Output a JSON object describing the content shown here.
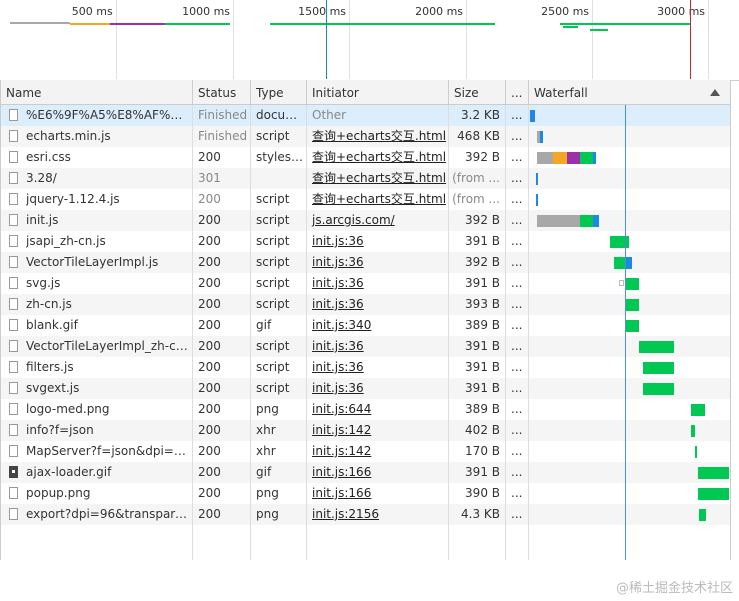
{
  "overview": {
    "ticks": [
      "500 ms",
      "1000 ms",
      "1500 ms",
      "2000 ms",
      "2500 ms",
      "3000 ms"
    ]
  },
  "columns": {
    "name": "Name",
    "status": "Status",
    "type": "Type",
    "initiator": "Initiator",
    "size": "Size",
    "time": "...",
    "waterfall": "Waterfall"
  },
  "rows": [
    {
      "name": "%E6%9F%A5%E8%AF%A2+e...",
      "status": "Finished",
      "type": "docum...",
      "initiator": "Other",
      "size": "3.2 KB",
      "time": "...",
      "icon": "file"
    },
    {
      "name": "echarts.min.js",
      "status": "Finished",
      "type": "script",
      "initiator": "查询+echarts交互.html",
      "size": "468 KB",
      "time": "...",
      "icon": "file"
    },
    {
      "name": "esri.css",
      "status": "200",
      "type": "stylesh...",
      "initiator": "查询+echarts交互.html",
      "size": "392 B",
      "time": "...",
      "icon": "file"
    },
    {
      "name": "3.28/",
      "status": "301",
      "type": "",
      "initiator": "查询+echarts交互.html",
      "size": "(from ...",
      "time": "...",
      "icon": "file"
    },
    {
      "name": "jquery-1.12.4.js",
      "status": "200",
      "type": "script",
      "initiator": "查询+echarts交互.html",
      "size": "(from ...",
      "time": "...",
      "icon": "file"
    },
    {
      "name": "init.js",
      "status": "200",
      "type": "script",
      "initiator": "js.arcgis.com/",
      "size": "392 B",
      "time": "...",
      "icon": "file"
    },
    {
      "name": "jsapi_zh-cn.js",
      "status": "200",
      "type": "script",
      "initiator": "init.js:36",
      "size": "391 B",
      "time": "...",
      "icon": "file"
    },
    {
      "name": "VectorTileLayerImpl.js",
      "status": "200",
      "type": "script",
      "initiator": "init.js:36",
      "size": "392 B",
      "time": "...",
      "icon": "file"
    },
    {
      "name": "svg.js",
      "status": "200",
      "type": "script",
      "initiator": "init.js:36",
      "size": "391 B",
      "time": "...",
      "icon": "file"
    },
    {
      "name": "zh-cn.js",
      "status": "200",
      "type": "script",
      "initiator": "init.js:36",
      "size": "393 B",
      "time": "...",
      "icon": "file"
    },
    {
      "name": "blank.gif",
      "status": "200",
      "type": "gif",
      "initiator": "init.js:340",
      "size": "389 B",
      "time": "...",
      "icon": "file"
    },
    {
      "name": "VectorTileLayerImpl_zh-cn.js",
      "status": "200",
      "type": "script",
      "initiator": "init.js:36",
      "size": "391 B",
      "time": "...",
      "icon": "file"
    },
    {
      "name": "filters.js",
      "status": "200",
      "type": "script",
      "initiator": "init.js:36",
      "size": "391 B",
      "time": "...",
      "icon": "file"
    },
    {
      "name": "svgext.js",
      "status": "200",
      "type": "script",
      "initiator": "init.js:36",
      "size": "391 B",
      "time": "...",
      "icon": "file"
    },
    {
      "name": "logo-med.png",
      "status": "200",
      "type": "png",
      "initiator": "init.js:644",
      "size": "389 B",
      "time": "...",
      "icon": "file"
    },
    {
      "name": "info?f=json",
      "status": "200",
      "type": "xhr",
      "initiator": "init.js:142",
      "size": "402 B",
      "time": "...",
      "icon": "file"
    },
    {
      "name": "MapServer?f=json&dpi=96...",
      "status": "200",
      "type": "xhr",
      "initiator": "init.js:142",
      "size": "170 B",
      "time": "...",
      "icon": "file"
    },
    {
      "name": "ajax-loader.gif",
      "status": "200",
      "type": "gif",
      "initiator": "init.js:166",
      "size": "391 B",
      "time": "...",
      "icon": "img"
    },
    {
      "name": "popup.png",
      "status": "200",
      "type": "png",
      "initiator": "init.js:166",
      "size": "390 B",
      "time": "...",
      "icon": "file"
    },
    {
      "name": "export?dpi=96&transparent...",
      "status": "200",
      "type": "png",
      "initiator": "init.js:2156",
      "size": "4.3 KB",
      "time": "...",
      "icon": "file"
    }
  ],
  "colors": {
    "waiting": "#a8a8a8",
    "blocked": "#f5a623",
    "ssl": "#9b30a8",
    "ttfb": "#00c853",
    "download": "#1e88e5",
    "dom_line": "#4a90e2",
    "load_line": "#c62828"
  },
  "watermark": "@稀土掘金技术社区"
}
